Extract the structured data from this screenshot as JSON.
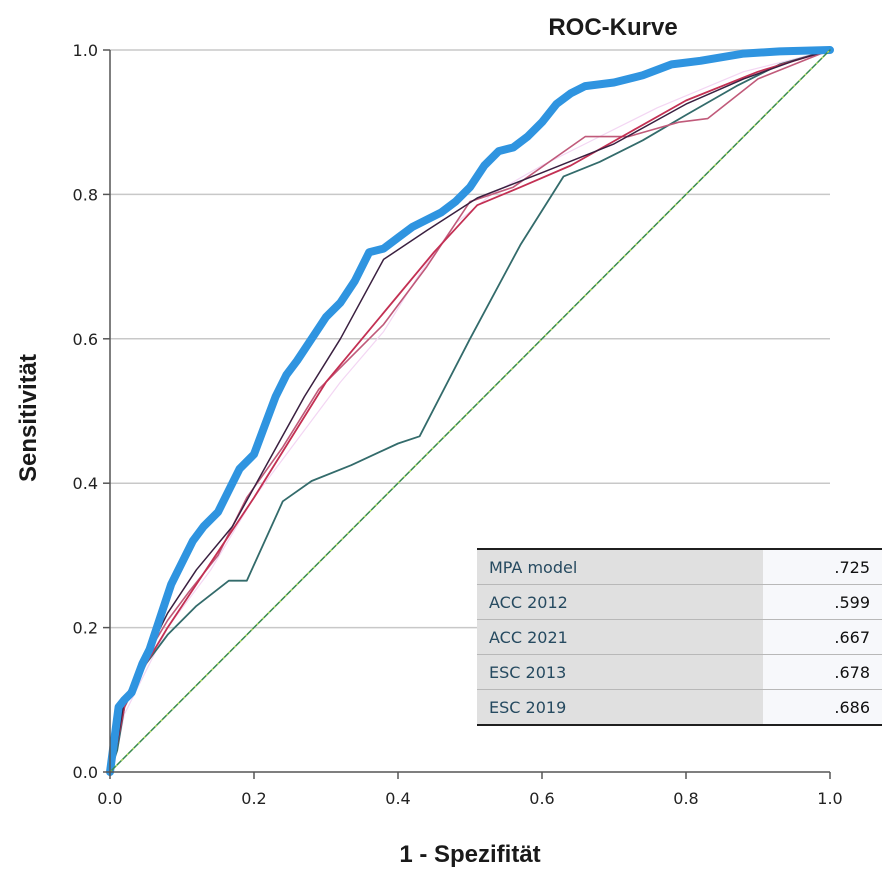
{
  "chart_data": {
    "type": "line",
    "title": "ROC-Kurve",
    "xlabel": "1 - Spezifität",
    "ylabel": "Sensitivität",
    "xlim": [
      0,
      1
    ],
    "ylim": [
      0,
      1
    ],
    "xticks": [
      "0.0",
      "0.2",
      "0.4",
      "0.6",
      "0.8",
      "1.0"
    ],
    "yticks": [
      "0.0",
      "0.2",
      "0.4",
      "0.6",
      "0.8",
      "1.0"
    ],
    "grid": "horizontal",
    "series": [
      {
        "color": "#f3d6f3",
        "width": 1.2,
        "points": [
          [
            0,
            0
          ],
          [
            0.01,
            0.03
          ],
          [
            0.02,
            0.08
          ],
          [
            0.05,
            0.14
          ],
          [
            0.08,
            0.2
          ],
          [
            0.14,
            0.28
          ],
          [
            0.2,
            0.38
          ],
          [
            0.26,
            0.46
          ],
          [
            0.32,
            0.54
          ],
          [
            0.38,
            0.61
          ],
          [
            0.43,
            0.69
          ],
          [
            0.48,
            0.76
          ],
          [
            0.53,
            0.8
          ],
          [
            0.6,
            0.84
          ],
          [
            0.68,
            0.88
          ],
          [
            0.76,
            0.92
          ],
          [
            0.88,
            0.97
          ],
          [
            1,
            1
          ]
        ]
      },
      {
        "color": "#336b6b",
        "width": 1.8,
        "points": [
          [
            0,
            0
          ],
          [
            0.01,
            0.03
          ],
          [
            0.02,
            0.09
          ],
          [
            0.05,
            0.15
          ],
          [
            0.08,
            0.19
          ],
          [
            0.12,
            0.23
          ],
          [
            0.165,
            0.265
          ],
          [
            0.19,
            0.265
          ],
          [
            0.24,
            0.375
          ],
          [
            0.28,
            0.403
          ],
          [
            0.335,
            0.425
          ],
          [
            0.4,
            0.455
          ],
          [
            0.43,
            0.465
          ],
          [
            0.5,
            0.6
          ],
          [
            0.57,
            0.73
          ],
          [
            0.63,
            0.825
          ],
          [
            0.68,
            0.845
          ],
          [
            0.74,
            0.875
          ],
          [
            0.8,
            0.91
          ],
          [
            0.87,
            0.95
          ],
          [
            0.93,
            0.98
          ],
          [
            1,
            1
          ]
        ]
      },
      {
        "color": "#c05a7a",
        "width": 1.6,
        "points": [
          [
            0,
            0
          ],
          [
            0.01,
            0.04
          ],
          [
            0.02,
            0.1
          ],
          [
            0.05,
            0.16
          ],
          [
            0.08,
            0.21
          ],
          [
            0.11,
            0.25
          ],
          [
            0.15,
            0.3
          ],
          [
            0.19,
            0.38
          ],
          [
            0.24,
            0.45
          ],
          [
            0.29,
            0.53
          ],
          [
            0.34,
            0.58
          ],
          [
            0.38,
            0.62
          ],
          [
            0.44,
            0.7
          ],
          [
            0.5,
            0.79
          ],
          [
            0.56,
            0.81
          ],
          [
            0.66,
            0.88
          ],
          [
            0.72,
            0.88
          ],
          [
            0.79,
            0.9
          ],
          [
            0.83,
            0.905
          ],
          [
            0.9,
            0.96
          ],
          [
            1,
            1
          ]
        ]
      },
      {
        "color": "#c33053",
        "width": 1.8,
        "points": [
          [
            0,
            0
          ],
          [
            0.01,
            0.04
          ],
          [
            0.02,
            0.09
          ],
          [
            0.05,
            0.15
          ],
          [
            0.08,
            0.2
          ],
          [
            0.12,
            0.26
          ],
          [
            0.16,
            0.32
          ],
          [
            0.2,
            0.38
          ],
          [
            0.25,
            0.46
          ],
          [
            0.3,
            0.54
          ],
          [
            0.35,
            0.6
          ],
          [
            0.4,
            0.66
          ],
          [
            0.45,
            0.72
          ],
          [
            0.51,
            0.785
          ],
          [
            0.57,
            0.81
          ],
          [
            0.64,
            0.84
          ],
          [
            0.72,
            0.885
          ],
          [
            0.8,
            0.93
          ],
          [
            0.9,
            0.97
          ],
          [
            1,
            1
          ]
        ]
      },
      {
        "color": "#3a2040",
        "width": 1.5,
        "points": [
          [
            0,
            0
          ],
          [
            0.01,
            0.04
          ],
          [
            0.02,
            0.1
          ],
          [
            0.05,
            0.16
          ],
          [
            0.08,
            0.22
          ],
          [
            0.12,
            0.28
          ],
          [
            0.17,
            0.34
          ],
          [
            0.22,
            0.43
          ],
          [
            0.27,
            0.52
          ],
          [
            0.32,
            0.6
          ],
          [
            0.38,
            0.71
          ],
          [
            0.44,
            0.75
          ],
          [
            0.51,
            0.795
          ],
          [
            0.6,
            0.83
          ],
          [
            0.7,
            0.87
          ],
          [
            0.8,
            0.925
          ],
          [
            0.88,
            0.96
          ],
          [
            0.95,
            0.985
          ],
          [
            1,
            1
          ]
        ]
      },
      {
        "color": "#2f94e0",
        "width": 8,
        "points": [
          [
            0,
            0
          ],
          [
            0.012,
            0.09
          ],
          [
            0.02,
            0.1
          ],
          [
            0.03,
            0.11
          ],
          [
            0.045,
            0.15
          ],
          [
            0.055,
            0.17
          ],
          [
            0.065,
            0.2
          ],
          [
            0.075,
            0.23
          ],
          [
            0.085,
            0.26
          ],
          [
            0.1,
            0.29
          ],
          [
            0.115,
            0.32
          ],
          [
            0.13,
            0.34
          ],
          [
            0.15,
            0.36
          ],
          [
            0.165,
            0.39
          ],
          [
            0.18,
            0.42
          ],
          [
            0.2,
            0.44
          ],
          [
            0.215,
            0.48
          ],
          [
            0.23,
            0.52
          ],
          [
            0.245,
            0.55
          ],
          [
            0.26,
            0.57
          ],
          [
            0.28,
            0.6
          ],
          [
            0.3,
            0.63
          ],
          [
            0.32,
            0.65
          ],
          [
            0.34,
            0.68
          ],
          [
            0.36,
            0.72
          ],
          [
            0.38,
            0.725
          ],
          [
            0.4,
            0.74
          ],
          [
            0.42,
            0.755
          ],
          [
            0.44,
            0.765
          ],
          [
            0.46,
            0.775
          ],
          [
            0.48,
            0.79
          ],
          [
            0.5,
            0.81
          ],
          [
            0.52,
            0.84
          ],
          [
            0.54,
            0.86
          ],
          [
            0.56,
            0.865
          ],
          [
            0.58,
            0.88
          ],
          [
            0.6,
            0.9
          ],
          [
            0.62,
            0.925
          ],
          [
            0.64,
            0.94
          ],
          [
            0.66,
            0.95
          ],
          [
            0.7,
            0.955
          ],
          [
            0.74,
            0.965
          ],
          [
            0.78,
            0.98
          ],
          [
            0.82,
            0.985
          ],
          [
            0.88,
            0.995
          ],
          [
            0.93,
            0.998
          ],
          [
            1,
            1
          ]
        ]
      },
      {
        "color": "#3a8a4f",
        "width": 1.5,
        "dashed_overlay": "#b8e05a",
        "points": [
          [
            0,
            0
          ],
          [
            1,
            1
          ]
        ]
      }
    ]
  },
  "legend_table": {
    "rows": [
      {
        "label": "MPA model",
        "value": ".725"
      },
      {
        "label": "ACC 2012",
        "value": ".599"
      },
      {
        "label": "ACC 2021",
        "value": ".667"
      },
      {
        "label": "ESC 2013",
        "value": ".678"
      },
      {
        "label": "ESC 2019",
        "value": ".686"
      }
    ]
  },
  "colors": {
    "grid": "#c8c8c8",
    "axis": "#555555"
  }
}
